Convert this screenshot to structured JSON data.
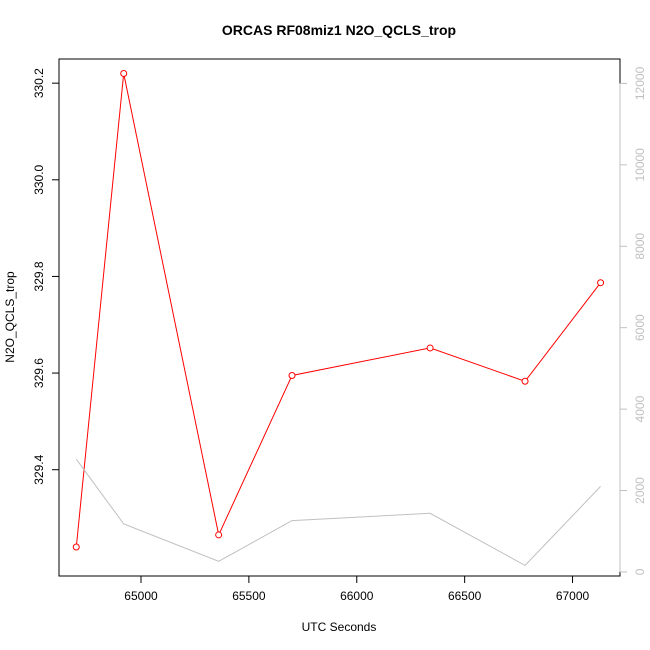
{
  "chart_data": {
    "type": "line",
    "title": "ORCAS RF08miz1 N2O_QCLS_trop",
    "xlabel": "UTC Seconds",
    "ylabel": "N2O_QCLS_trop",
    "x": [
      64700,
      64920,
      65360,
      65700,
      66340,
      66780,
      67130
    ],
    "xlim": [
      64620,
      67220
    ],
    "ylim": [
      329.18,
      330.25
    ],
    "y2lim": [
      -100,
      12600
    ],
    "x_ticks": [
      65000,
      65500,
      66000,
      66500,
      67000
    ],
    "y_ticks": [
      329.4,
      329.6,
      329.8,
      330.0,
      330.2
    ],
    "y2_ticks": [
      0,
      2000,
      4000,
      6000,
      8000,
      10000,
      12000
    ],
    "series": [
      {
        "axis": "left",
        "color": "#ff0000",
        "markers": true,
        "values": [
          329.24,
          330.22,
          329.265,
          329.595,
          329.652,
          329.583,
          329.787
        ]
      },
      {
        "axis": "right",
        "color": "#c0c0c0",
        "markers": false,
        "values": [
          2770,
          1180,
          260,
          1260,
          1440,
          160,
          2100
        ]
      }
    ],
    "grid": false,
    "legend": "none",
    "right_axis_color": "#c0c0c0"
  }
}
